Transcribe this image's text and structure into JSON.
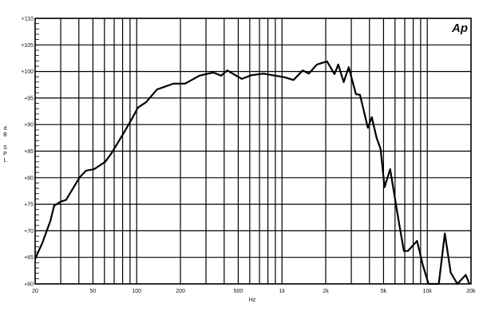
{
  "chart_data": {
    "type": "line",
    "title": "",
    "xlabel": "Hz",
    "ylabel": "dB SPL",
    "logo": "Ap",
    "x_scale": "log",
    "xlim": [
      20,
      20000
    ],
    "ylim": [
      60,
      110
    ],
    "grid": true,
    "x_ticks": [
      20,
      30,
      40,
      50,
      60,
      70,
      80,
      90,
      100,
      200,
      300,
      400,
      500,
      600,
      700,
      800,
      900,
      1000,
      2000,
      3000,
      4000,
      5000,
      6000,
      7000,
      8000,
      9000,
      10000,
      20000
    ],
    "x_tick_labels": [
      {
        "value": 20,
        "label": "20"
      },
      {
        "value": 50,
        "label": "50"
      },
      {
        "value": 100,
        "label": "100"
      },
      {
        "value": 200,
        "label": "200"
      },
      {
        "value": 500,
        "label": "500"
      },
      {
        "value": 1000,
        "label": "1k"
      },
      {
        "value": 2000,
        "label": "2k"
      },
      {
        "value": 5000,
        "label": "5k"
      },
      {
        "value": 10000,
        "label": "10k"
      },
      {
        "value": 20000,
        "label": "20k"
      }
    ],
    "y_tick_labels": [
      {
        "value": 60,
        "label": "+60"
      },
      {
        "value": 65,
        "label": "+65"
      },
      {
        "value": 70,
        "label": "+70"
      },
      {
        "value": 75,
        "label": "+75"
      },
      {
        "value": 80,
        "label": "+80"
      },
      {
        "value": 85,
        "label": "+85"
      },
      {
        "value": 90,
        "label": "+90"
      },
      {
        "value": 95,
        "label": "+95"
      },
      {
        "value": 100,
        "label": "+100"
      },
      {
        "value": 105,
        "label": "+105"
      },
      {
        "value": 110,
        "label": "+110"
      }
    ],
    "series": [
      {
        "color": "#000000",
        "x": [
          20,
          22.4,
          25.5,
          27,
          30,
          32.6,
          40.6,
          44.7,
          51,
          60.8,
          67,
          79.3,
          92,
          102,
          116,
          138,
          179,
          215,
          270,
          336,
          381,
          420,
          529,
          615,
          745,
          1045,
          1200,
          1390,
          1530,
          1740,
          2040,
          2300,
          2440,
          2660,
          2880,
          3230,
          3440,
          3900,
          4150,
          4480,
          4770,
          5080,
          5550,
          6400,
          6900,
          7350,
          8500,
          9300,
          10200,
          12000,
          13200,
          14500,
          16100,
          18400,
          19500
        ],
        "y": [
          64.7,
          67.7,
          71.9,
          74.7,
          75.5,
          75.8,
          80.1,
          81.3,
          81.6,
          83,
          84.6,
          87.9,
          90.9,
          93.2,
          94.2,
          96.6,
          97.7,
          97.7,
          99.2,
          99.8,
          99.2,
          100.2,
          98.6,
          99.3,
          99.6,
          98.9,
          98.4,
          100.2,
          99.6,
          101.3,
          101.9,
          99.5,
          101.3,
          98,
          100.8,
          95.7,
          95.6,
          89.4,
          91.4,
          87.5,
          85.4,
          78.2,
          81.6,
          71.4,
          66.2,
          66.2,
          68.1,
          63.6,
          60,
          60,
          69.5,
          62.1,
          60,
          61.7,
          60
        ]
      }
    ]
  }
}
